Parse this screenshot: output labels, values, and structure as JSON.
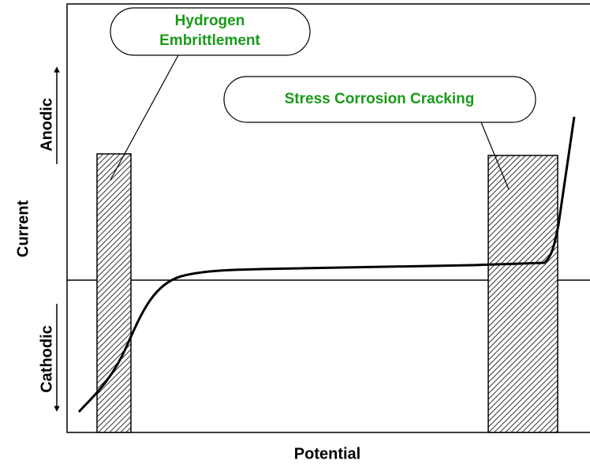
{
  "callouts": {
    "hydrogen_embrittlement": [
      "Hydrogen",
      "Embrittlement"
    ],
    "stress_corrosion_cracking": "Stress Corrosion Cracking"
  },
  "axes": {
    "y_label": "Current",
    "anodic": "Anodic",
    "cathodic": "Cathodic",
    "x_label": "Potential"
  }
}
